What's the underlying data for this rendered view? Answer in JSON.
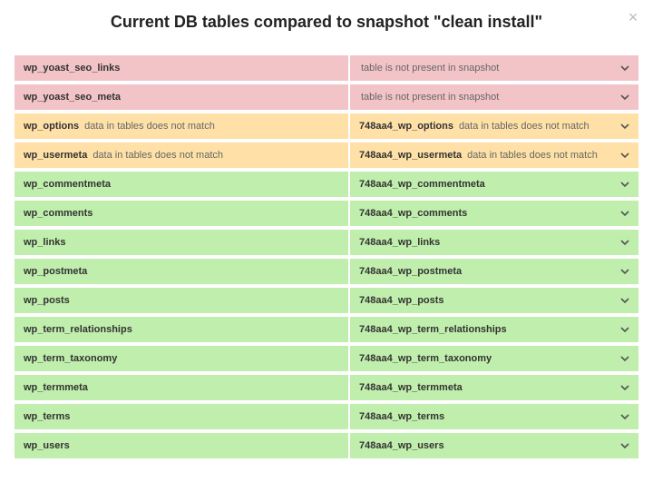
{
  "header": {
    "title": "Current DB tables compared to snapshot \"clean install\""
  },
  "colors": {
    "red": "#f3c4c7",
    "yellow": "#ffe1a7",
    "green": "#c0eeac"
  },
  "rows": [
    {
      "status": "red",
      "left_main": "wp_yoast_seo_links",
      "left_sub": "",
      "right_main": "",
      "right_sub": "table is not present in snapshot"
    },
    {
      "status": "red",
      "left_main": "wp_yoast_seo_meta",
      "left_sub": "",
      "right_main": "",
      "right_sub": "table is not present in snapshot"
    },
    {
      "status": "yellow",
      "left_main": "wp_options",
      "left_sub": "data in tables does not match",
      "right_main": "748aa4_wp_options",
      "right_sub": "data in tables does not match"
    },
    {
      "status": "yellow",
      "left_main": "wp_usermeta",
      "left_sub": "data in tables does not match",
      "right_main": "748aa4_wp_usermeta",
      "right_sub": "data in tables does not match"
    },
    {
      "status": "green",
      "left_main": "wp_commentmeta",
      "left_sub": "",
      "right_main": "748aa4_wp_commentmeta",
      "right_sub": ""
    },
    {
      "status": "green",
      "left_main": "wp_comments",
      "left_sub": "",
      "right_main": "748aa4_wp_comments",
      "right_sub": ""
    },
    {
      "status": "green",
      "left_main": "wp_links",
      "left_sub": "",
      "right_main": "748aa4_wp_links",
      "right_sub": ""
    },
    {
      "status": "green",
      "left_main": "wp_postmeta",
      "left_sub": "",
      "right_main": "748aa4_wp_postmeta",
      "right_sub": ""
    },
    {
      "status": "green",
      "left_main": "wp_posts",
      "left_sub": "",
      "right_main": "748aa4_wp_posts",
      "right_sub": ""
    },
    {
      "status": "green",
      "left_main": "wp_term_relationships",
      "left_sub": "",
      "right_main": "748aa4_wp_term_relationships",
      "right_sub": ""
    },
    {
      "status": "green",
      "left_main": "wp_term_taxonomy",
      "left_sub": "",
      "right_main": "748aa4_wp_term_taxonomy",
      "right_sub": ""
    },
    {
      "status": "green",
      "left_main": "wp_termmeta",
      "left_sub": "",
      "right_main": "748aa4_wp_termmeta",
      "right_sub": ""
    },
    {
      "status": "green",
      "left_main": "wp_terms",
      "left_sub": "",
      "right_main": "748aa4_wp_terms",
      "right_sub": ""
    },
    {
      "status": "green",
      "left_main": "wp_users",
      "left_sub": "",
      "right_main": "748aa4_wp_users",
      "right_sub": ""
    }
  ]
}
